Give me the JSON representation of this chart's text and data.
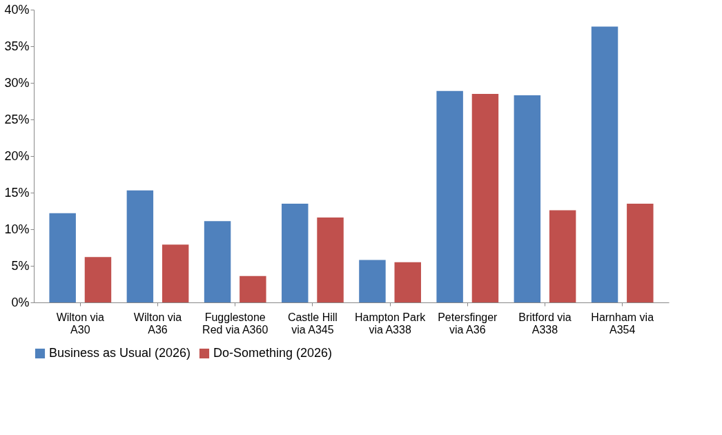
{
  "chart_data": {
    "type": "bar",
    "categories": [
      "Wilton via A30",
      "Wilton via A36",
      "Fugglestone Red via A360",
      "Castle Hill via A345",
      "Hampton Park via A338",
      "Petersfinger via A36",
      "Britford via A338",
      "Harnham via A354"
    ],
    "series": [
      {
        "name": "Business as Usual (2026)",
        "color": "#4f81bd",
        "values": [
          12.2,
          15.3,
          11.1,
          13.5,
          5.8,
          28.9,
          28.3,
          37.7
        ]
      },
      {
        "name": "Do-Something (2026)",
        "color": "#c0504d",
        "values": [
          6.2,
          7.9,
          3.6,
          11.6,
          5.5,
          28.5,
          12.6,
          13.5
        ]
      }
    ],
    "ylim": [
      0,
      40
    ],
    "yticks": [
      {
        "value": 0,
        "label": "0%"
      },
      {
        "value": 5,
        "label": "5%"
      },
      {
        "value": 10,
        "label": "10%"
      },
      {
        "value": 15,
        "label": "15%"
      },
      {
        "value": 20,
        "label": "20%"
      },
      {
        "value": 25,
        "label": "25%"
      },
      {
        "value": 30,
        "label": "30%"
      },
      {
        "value": 35,
        "label": "35%"
      },
      {
        "value": 40,
        "label": "40%"
      }
    ],
    "grid": false,
    "legend": "bottom"
  }
}
